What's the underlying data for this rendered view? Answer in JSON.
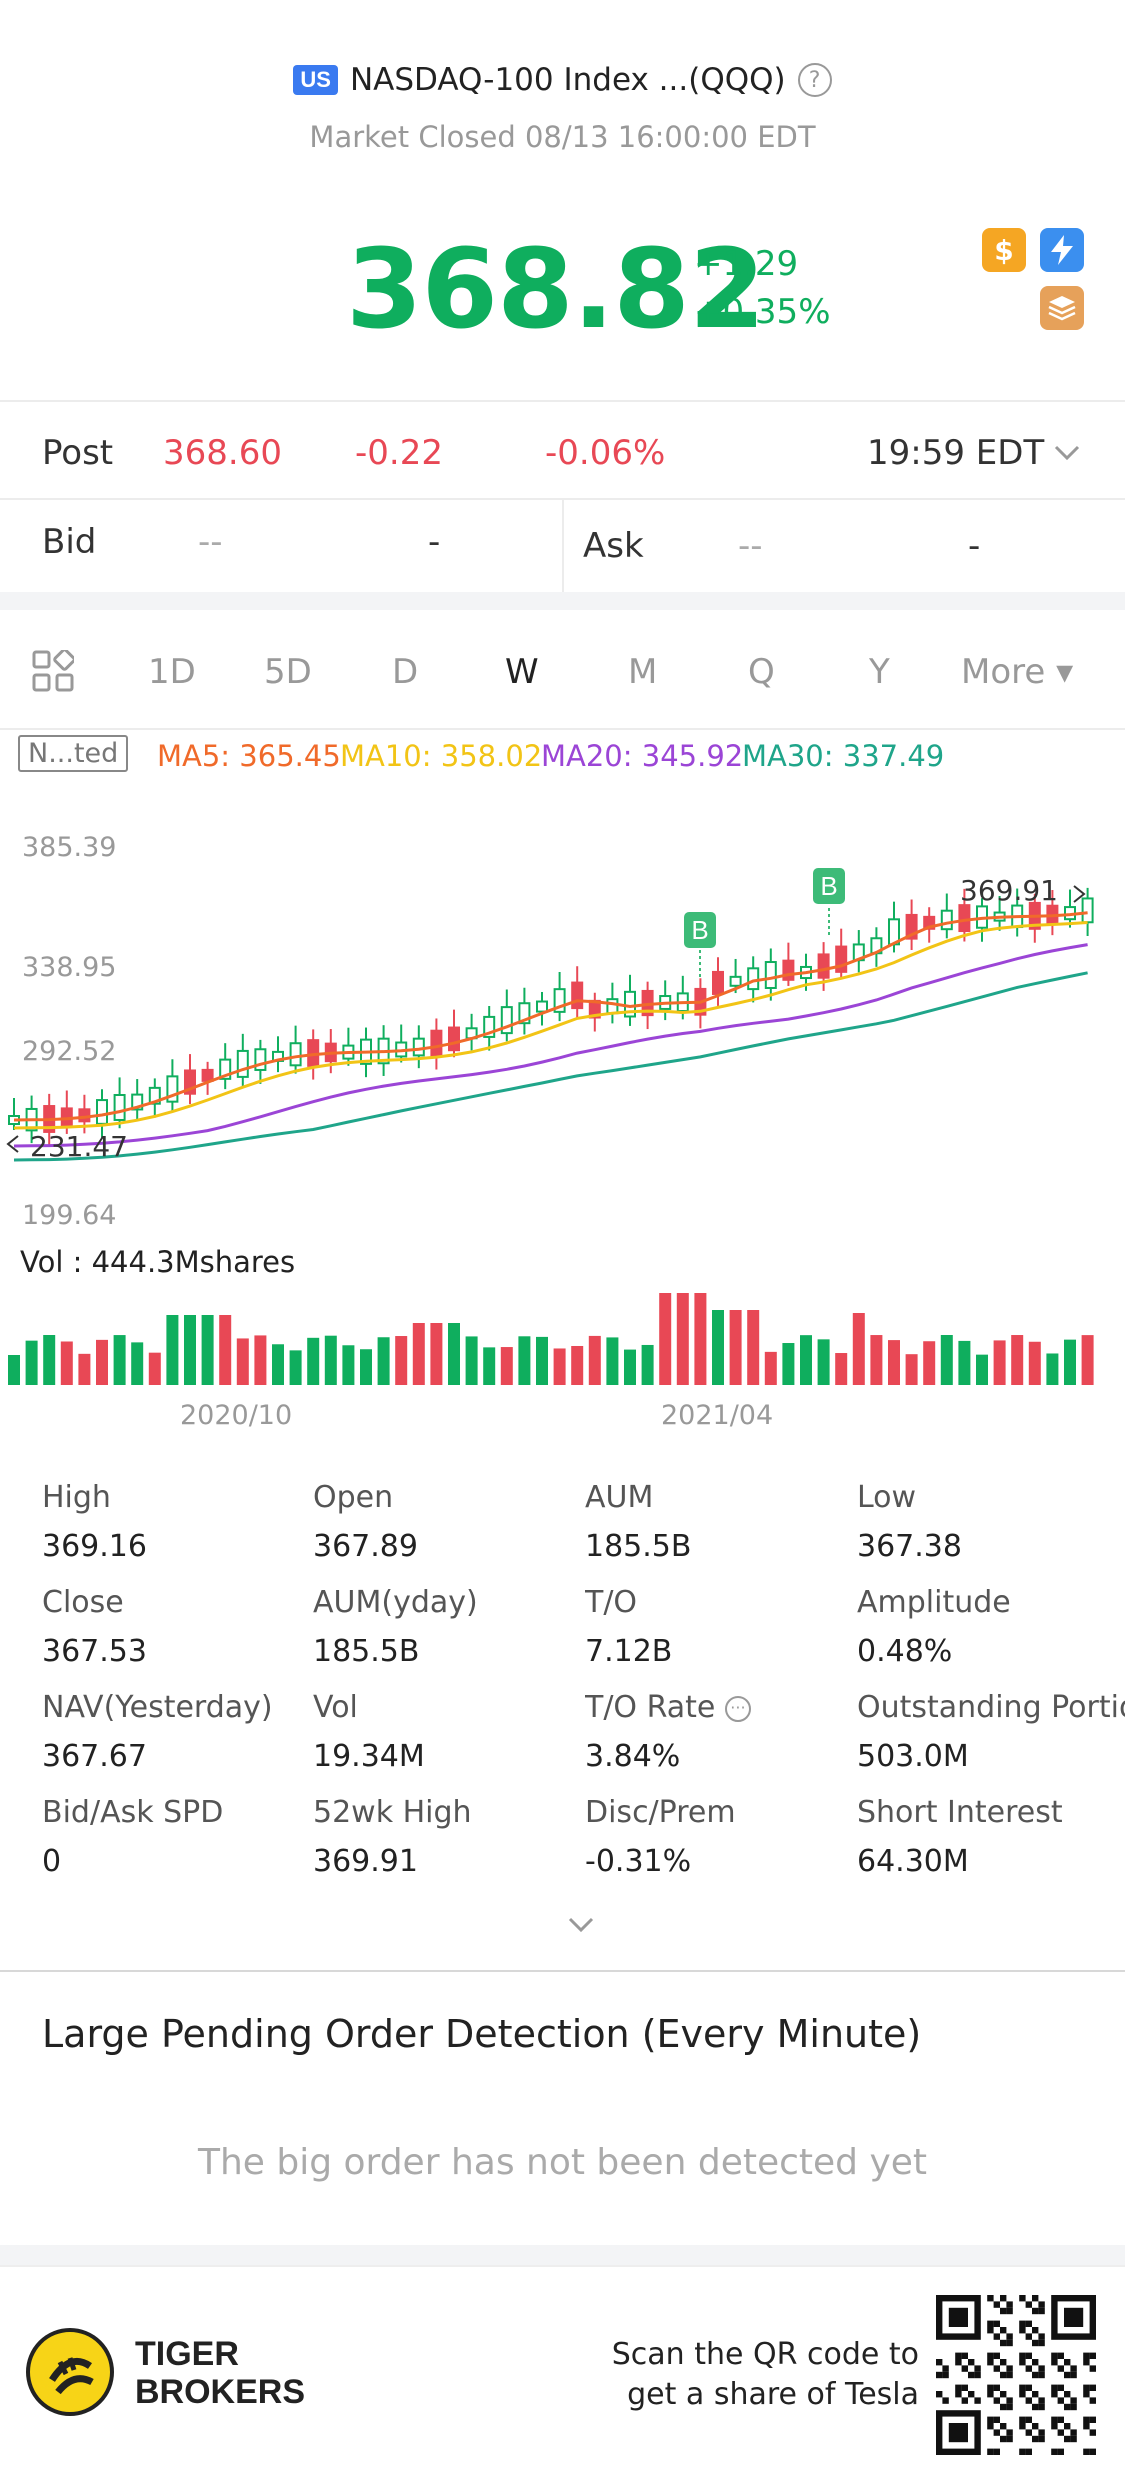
{
  "header": {
    "market_badge": "US",
    "title": "NASDAQ-100 Index ...(QQQ)",
    "status": "Market Closed 08/13 16:00:00 EDT",
    "price": "368.82",
    "change_abs": "+1.29",
    "change_pct": "+0.35%",
    "colors": {
      "up": "#0fae5e",
      "down": "#e84855"
    },
    "icons": [
      "dollar-icon",
      "lightning-icon",
      "layers-icon"
    ]
  },
  "post": {
    "label": "Post",
    "price": "368.60",
    "change_abs": "-0.22",
    "change_pct": "-0.06%",
    "time": "19:59 EDT"
  },
  "quote": {
    "bid_label": "Bid",
    "bid_price": "--",
    "bid_size": "-",
    "ask_label": "Ask",
    "ask_price": "--",
    "ask_size": "-"
  },
  "tabs": {
    "items": [
      "1D",
      "5D",
      "D",
      "W",
      "M",
      "Q",
      "Y",
      "More ▾"
    ],
    "active": "W"
  },
  "ma": {
    "mode": "N...ted",
    "ma5": "MA5: 365.45",
    "ma10": "MA10: 358.02",
    "ma20": "MA20: 345.92",
    "ma30": "MA30: 337.49",
    "colors": {
      "ma5": "#f06a2a",
      "ma10": "#f2c416",
      "ma20": "#9b45d6",
      "ma30": "#1fa58a"
    }
  },
  "chart_data": {
    "type": "line",
    "y_ticks": [
      "385.39",
      "338.95",
      "292.52",
      "199.64"
    ],
    "ylim": [
      199.64,
      385.39
    ],
    "x_ticks": [
      "2020/10",
      "2021/04"
    ],
    "high_marker": "369.91",
    "low_marker": "231.47",
    "buy_marker": "B",
    "vol_label": "Vol  : 444.3Mshares"
  },
  "stats": [
    {
      "label": "High",
      "value": "369.16"
    },
    {
      "label": "Open",
      "value": "367.89"
    },
    {
      "label": "AUM",
      "value": "185.5B"
    },
    {
      "label": "Low",
      "value": "367.38"
    },
    {
      "label": "Close",
      "value": "367.53"
    },
    {
      "label": "AUM(yday)",
      "value": "185.5B"
    },
    {
      "label": "T/O",
      "value": "7.12B"
    },
    {
      "label": "Amplitude",
      "value": "0.48%"
    },
    {
      "label": "NAV(Yesterday)",
      "value": "367.67"
    },
    {
      "label": "Vol",
      "value": "19.34M"
    },
    {
      "label": "T/O Rate",
      "value": "3.84%"
    },
    {
      "label": "Outstanding Portion",
      "value": "503.0M"
    },
    {
      "label": "Bid/Ask SPD",
      "value": "0"
    },
    {
      "label": "52wk High",
      "value": "369.91"
    },
    {
      "label": "Disc/Prem",
      "value": "-0.31%"
    },
    {
      "label": "Short Interest",
      "value": "64.30M"
    }
  ],
  "pending": {
    "title": "Large Pending Order Detection (Every Minute)",
    "empty": "The big order has not been detected yet"
  },
  "footer": {
    "brand_line1": "TIGER",
    "brand_line2": "BROKERS",
    "scan_line1": "Scan the QR code to",
    "scan_line2": "get a share of Tesla"
  }
}
